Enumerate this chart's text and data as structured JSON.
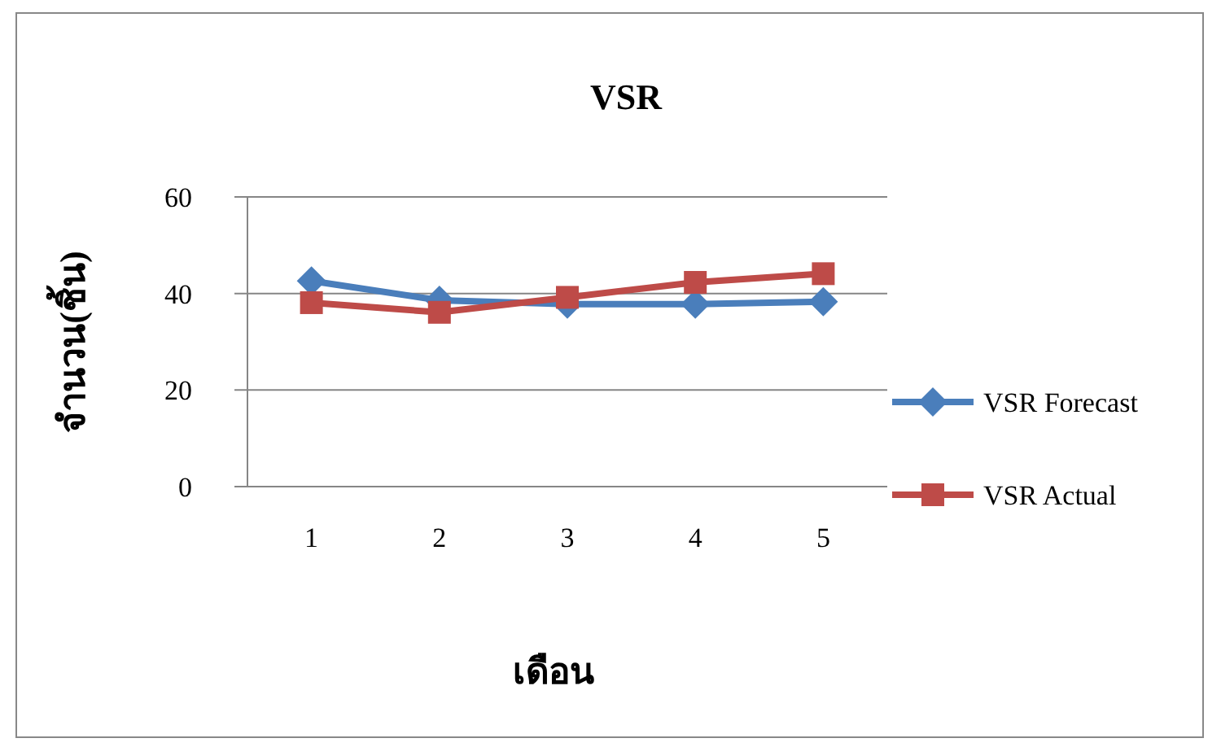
{
  "chart_data": {
    "type": "line",
    "title": "VSR",
    "xlabel": "เดือน",
    "ylabel": "จำนวน(ชิ้น)",
    "categories": [
      "1",
      "2",
      "3",
      "4",
      "5"
    ],
    "series": [
      {
        "name": "VSR Forecast",
        "color": "#4a7ebb",
        "marker": "diamond",
        "values": [
          42.6,
          38.6,
          37.8,
          37.8,
          38.3
        ]
      },
      {
        "name": "VSR Actual",
        "color": "#be4b48",
        "marker": "square",
        "values": [
          38.1,
          36.1,
          39.2,
          42.3,
          44.1
        ]
      }
    ],
    "ylim": [
      0,
      60
    ],
    "yticks": [
      0,
      20,
      40,
      60
    ],
    "grid": "y",
    "legend": "right"
  }
}
